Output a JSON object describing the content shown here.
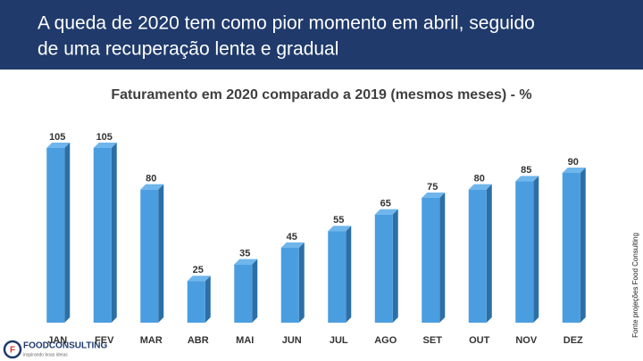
{
  "header": {
    "title_line1": "A queda de 2020 tem como pior momento em abril, seguido",
    "title_line2": "de uma recuperação lenta e gradual"
  },
  "chart_data": {
    "type": "bar",
    "title": "Faturamento em 2020 comparado a 2019 (mesmos meses) - %",
    "categories": [
      "JAN",
      "FEV",
      "MAR",
      "ABR",
      "MAI",
      "JUN",
      "JUL",
      "AGO",
      "SET",
      "OUT",
      "NOV",
      "DEZ"
    ],
    "values": [
      105,
      105,
      80,
      25,
      35,
      45,
      55,
      65,
      75,
      80,
      85,
      90
    ],
    "color": "#4a9ee0",
    "ylim": [
      0,
      105
    ]
  },
  "source": "Fonte projeções Food Consulting",
  "logo": {
    "name": "FOODCONSULTING",
    "tagline": "inspirando boas ideias"
  }
}
